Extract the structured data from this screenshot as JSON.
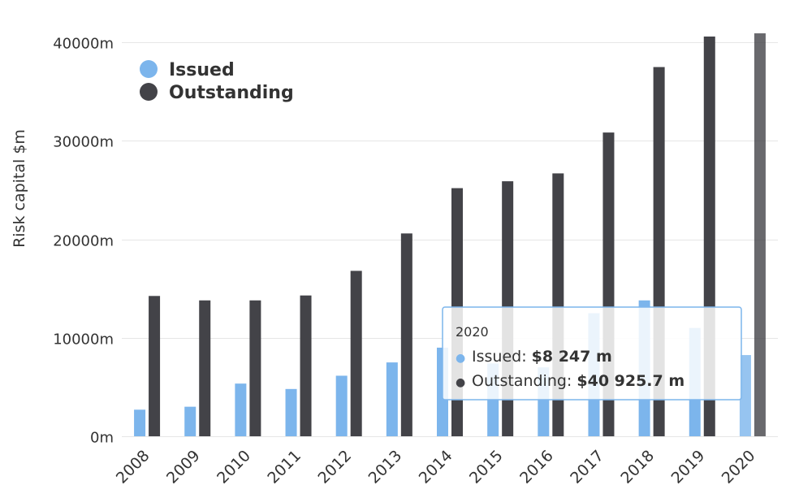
{
  "colors": {
    "issued": "#7cb5ec",
    "outstanding": "#434348",
    "gridline": "#e6e6e6",
    "tooltip_border": "#7cb5ec"
  },
  "chart_data": {
    "type": "bar",
    "title": "",
    "xlabel": "",
    "ylabel": "Risk capital $m",
    "categories": [
      "2008",
      "2009",
      "2010",
      "2011",
      "2012",
      "2013",
      "2014",
      "2015",
      "2016",
      "2017",
      "2018",
      "2019",
      "2020"
    ],
    "series": [
      {
        "name": "Issued",
        "color": "#7cb5ec",
        "values": [
          2700,
          3000,
          5350,
          4800,
          6150,
          7500,
          9000,
          7400,
          7000,
          12500,
          13800,
          11000,
          8247
        ]
      },
      {
        "name": "Outstanding",
        "color": "#434348",
        "values": [
          14250,
          13800,
          13800,
          14300,
          16800,
          20600,
          25200,
          25900,
          26700,
          30850,
          37500,
          40600,
          40925.7
        ]
      }
    ],
    "ylim": [
      0,
      42000
    ],
    "yticks": [
      0,
      10000,
      20000,
      30000,
      40000
    ],
    "ytick_labels": [
      "0m",
      "10000m",
      "20000m",
      "30000m",
      "40000m"
    ],
    "grid": true,
    "legend_position": "top-left",
    "highlighted_category": "2020"
  },
  "tooltip": {
    "title": "2020",
    "rows": [
      {
        "label": "Issued: ",
        "value": "$8 247 m"
      },
      {
        "label": "Outstanding: ",
        "value": "$40 925.7 m"
      }
    ]
  }
}
